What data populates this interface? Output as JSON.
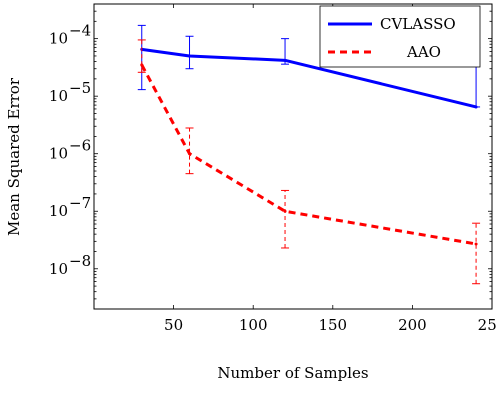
{
  "chart_data": {
    "type": "line",
    "title": "",
    "xlabel": "Number of Samples",
    "ylabel": "Mean Squared Error",
    "xlim": [
      0,
      250
    ],
    "ylim": [
      2e-09,
      0.0004
    ],
    "yscale": "log",
    "x_ticks": [
      50,
      100,
      150,
      200,
      250
    ],
    "x_tick_labels": [
      "50",
      "100",
      "150",
      "200",
      "250"
    ],
    "y_ticks": [
      1e-08,
      1e-07,
      1e-06,
      1e-05,
      0.0001
    ],
    "y_tick_labels": [
      {
        "base": "10",
        "exp": "−8"
      },
      {
        "base": "10",
        "exp": "−7"
      },
      {
        "base": "10",
        "exp": "−6"
      },
      {
        "base": "10",
        "exp": "−5"
      },
      {
        "base": "10",
        "exp": "−4"
      }
    ],
    "grid": false,
    "legend_position": "top-right",
    "series": [
      {
        "name": "CVLASSO",
        "color": "#0000ff",
        "style": "solid",
        "x": [
          30,
          60,
          120,
          240
        ],
        "y": [
          6.5e-05,
          5e-05,
          4.2e-05,
          6.5e-06
        ],
        "y_low": [
          1.3e-05,
          3e-05,
          3.6e-05,
          6.5e-06
        ],
        "y_high": [
          0.00017,
          0.00011,
          0.0001,
          7e-05
        ]
      },
      {
        "name": "AAO",
        "color": "#ff0000",
        "style": "dashed",
        "x": [
          30,
          60,
          120,
          240
        ],
        "y": [
          3.5e-05,
          1e-06,
          1e-07,
          2.7e-08
        ],
        "y_low": [
          2.6e-05,
          4.5e-07,
          2.3e-08,
          5.5e-09
        ],
        "y_high": [
          9.5e-05,
          2.8e-06,
          2.3e-07,
          6.2e-08
        ]
      }
    ]
  }
}
